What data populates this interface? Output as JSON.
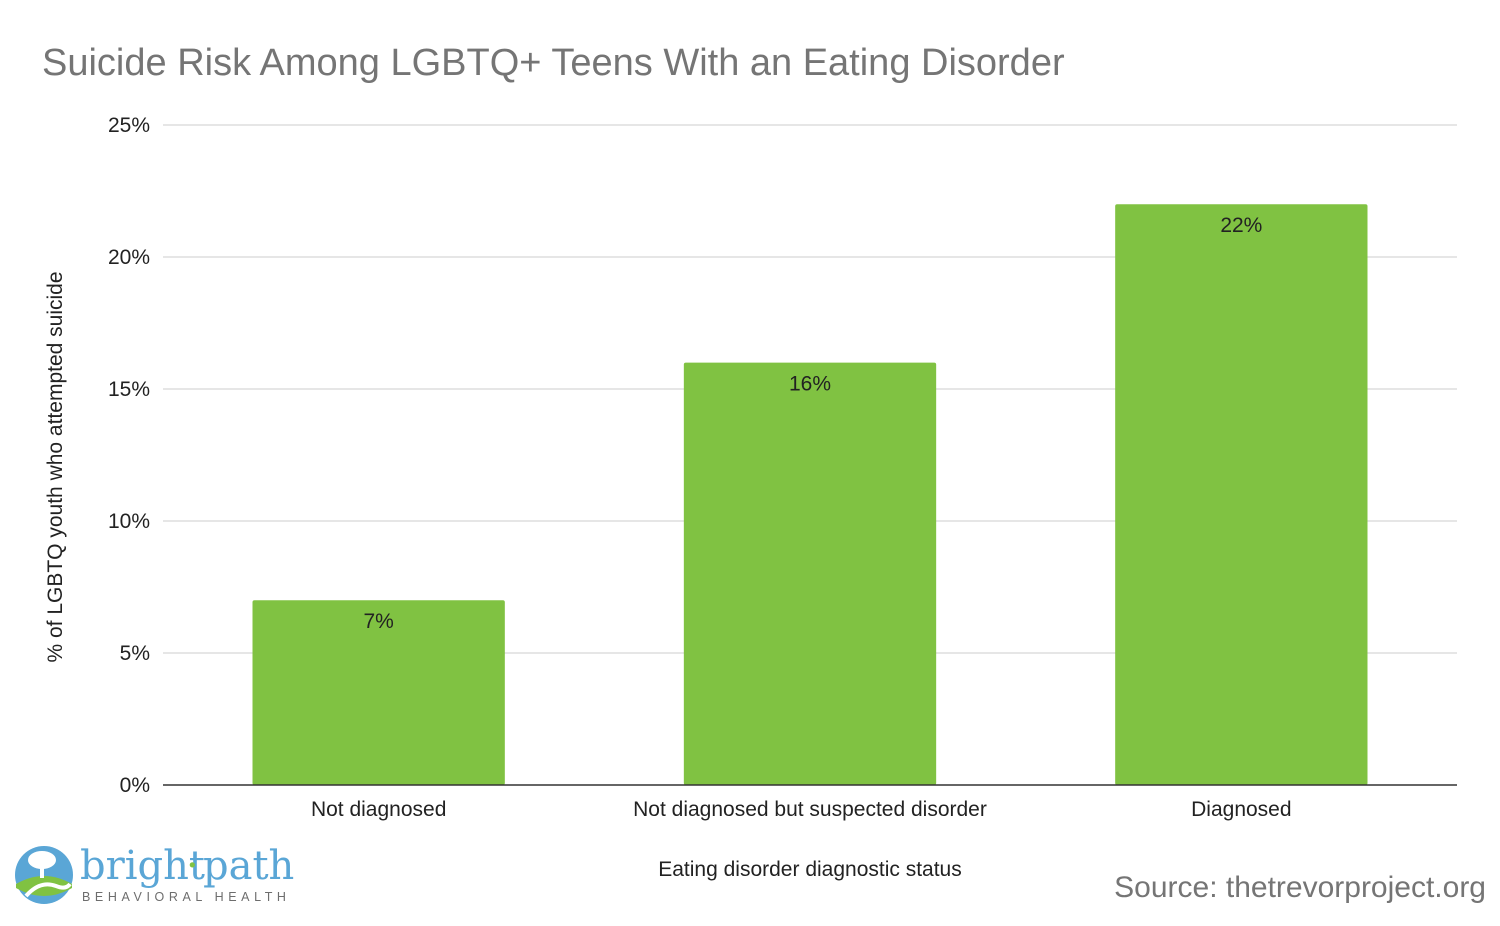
{
  "chart_data": {
    "type": "bar",
    "title": "Suicide Risk Among LGBTQ+ Teens With an Eating Disorder",
    "xlabel": "Eating disorder diagnostic status",
    "ylabel": "% of LGBTQ youth who attempted suicide",
    "categories": [
      "Not diagnosed",
      "Not diagnosed but suspected disorder",
      "Diagnosed"
    ],
    "values": [
      7,
      16,
      22
    ],
    "data_labels": [
      "7%",
      "16%",
      "22%"
    ],
    "ylim": [
      0,
      25
    ],
    "yticks": [
      0,
      5,
      10,
      15,
      20,
      25
    ],
    "ytick_labels": [
      "0%",
      "5%",
      "10%",
      "15%",
      "20%",
      "25%"
    ],
    "grid": true,
    "bar_color": "#80c242"
  },
  "source": "Source: thetrevorproject.org",
  "logo": {
    "word_left": "bright",
    "separator": "·",
    "word_right": "path",
    "subtitle": "BEHAVIORAL HEALTH",
    "color": "#5aa6d6"
  }
}
